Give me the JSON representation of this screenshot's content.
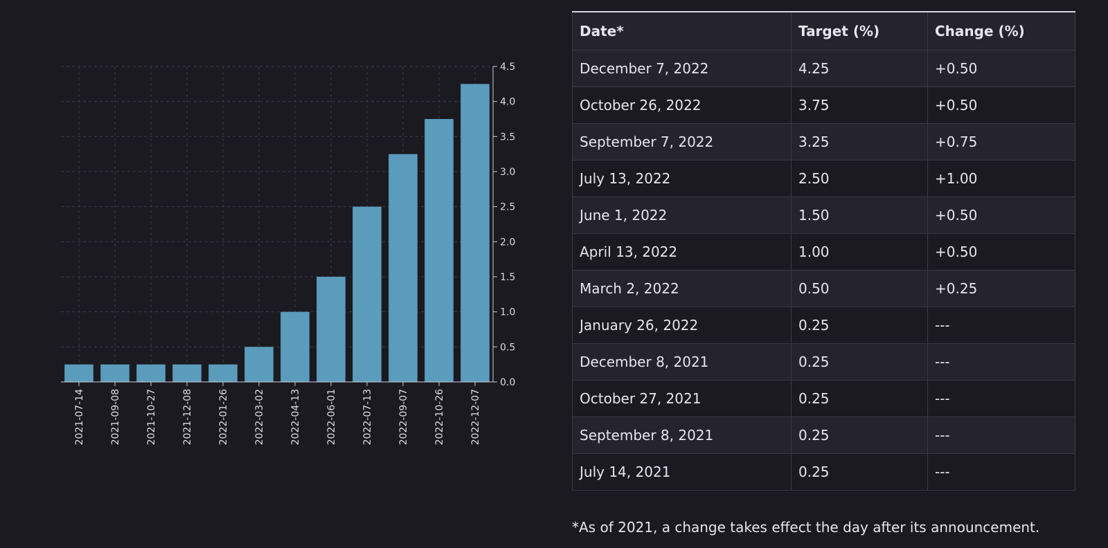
{
  "chart_data": {
    "type": "bar",
    "categories": [
      "2021-07-14",
      "2021-09-08",
      "2021-10-27",
      "2021-12-08",
      "2022-01-26",
      "2022-03-02",
      "2022-04-13",
      "2022-06-01",
      "2022-07-13",
      "2022-09-07",
      "2022-10-26",
      "2022-12-07"
    ],
    "values": [
      0.25,
      0.25,
      0.25,
      0.25,
      0.25,
      0.5,
      1.0,
      1.5,
      2.5,
      3.25,
      3.75,
      4.25
    ],
    "title": "",
    "xlabel": "",
    "ylabel": "",
    "ylim": [
      0,
      4.5
    ],
    "yticks": [
      "0.0",
      "0.5",
      "1.0",
      "1.5",
      "2.0",
      "2.5",
      "3.0",
      "3.5",
      "4.0",
      "4.5"
    ],
    "y_axis_side": "right",
    "grid": true,
    "bar_color": "#5b9cbd"
  },
  "table": {
    "headers": [
      "Date*",
      "Target (%)",
      "Change (%)"
    ],
    "rows": [
      [
        "December 7, 2022",
        "4.25",
        "+0.50"
      ],
      [
        "October 26, 2022",
        "3.75",
        "+0.50"
      ],
      [
        "September 7, 2022",
        "3.25",
        "+0.75"
      ],
      [
        "July 13, 2022",
        "2.50",
        "+1.00"
      ],
      [
        "June 1, 2022",
        "1.50",
        "+0.50"
      ],
      [
        "April 13, 2022",
        "1.00",
        "+0.50"
      ],
      [
        "March 2, 2022",
        "0.50",
        "+0.25"
      ],
      [
        "January 26, 2022",
        "0.25",
        "---"
      ],
      [
        "December 8, 2021",
        "0.25",
        "---"
      ],
      [
        "October 27, 2021",
        "0.25",
        "---"
      ],
      [
        "September 8, 2021",
        "0.25",
        "---"
      ],
      [
        "July 14, 2021",
        "0.25",
        "---"
      ]
    ]
  },
  "footnote": "*As of 2021, a change takes effect the day after its announcement."
}
